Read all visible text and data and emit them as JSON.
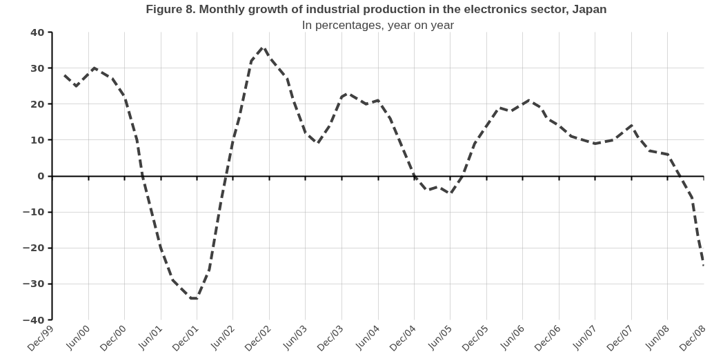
{
  "chart_data": {
    "type": "line",
    "title": "Figure 8.  Monthly growth of industrial production in the electronics sector, Japan",
    "subtitle": "In percentages, year on year",
    "x": [
      "2000-02",
      "2000-04",
      "2000-07",
      "2000-10",
      "2000-12",
      "2001-02",
      "2001-03",
      "2001-06",
      "2001-08",
      "2001-11",
      "2001-12",
      "2002-02",
      "2002-04",
      "2002-06",
      "2002-07",
      "2002-09",
      "2002-11",
      "2002-12",
      "2003-03",
      "2003-04",
      "2003-06",
      "2003-08",
      "2003-10",
      "2003-12",
      "2004-01",
      "2004-04",
      "2004-06",
      "2004-08",
      "2004-10",
      "2004-12",
      "2005-02",
      "2005-04",
      "2005-06",
      "2005-08",
      "2005-10",
      "2005-12",
      "2006-02",
      "2006-04",
      "2006-06",
      "2006-07",
      "2006-09",
      "2006-10",
      "2006-12",
      "2007-02",
      "2007-06",
      "2007-09",
      "2007-12",
      "2008-01",
      "2008-03",
      "2008-06",
      "2008-08",
      "2008-10",
      "2008-11",
      "2008-12"
    ],
    "series": [
      {
        "color": "#404040",
        "values": [
          28,
          25,
          30,
          27,
          22,
          10,
          0,
          -20,
          -29,
          -34,
          -34,
          -26,
          -7,
          10,
          16,
          32,
          36,
          33,
          27,
          21,
          12,
          9,
          14,
          22,
          23,
          20,
          21,
          16,
          8,
          0,
          -4,
          -3,
          -5,
          0,
          9,
          14,
          19,
          18,
          20,
          21,
          19,
          16,
          14,
          11,
          9,
          10,
          14,
          11,
          7,
          6,
          0,
          -6,
          -17,
          -25
        ]
      }
    ],
    "xlim": [
      "1999-12",
      "2008-12"
    ],
    "xticks": [
      {
        "value": "1999-12",
        "label": "Dec/99"
      },
      {
        "value": "2000-06",
        "label": "Jun/00"
      },
      {
        "value": "2000-12",
        "label": "Dec/00"
      },
      {
        "value": "2001-06",
        "label": "Jun/01"
      },
      {
        "value": "2001-12",
        "label": "Dec/01"
      },
      {
        "value": "2002-06",
        "label": "Jun/02"
      },
      {
        "value": "2002-12",
        "label": "Dec/02"
      },
      {
        "value": "2003-06",
        "label": "Jun/03"
      },
      {
        "value": "2003-12",
        "label": "Dec/03"
      },
      {
        "value": "2004-06",
        "label": "Jun/04"
      },
      {
        "value": "2004-12",
        "label": "Dec/04"
      },
      {
        "value": "2005-06",
        "label": "Jun/05"
      },
      {
        "value": "2005-12",
        "label": "Dec/05"
      },
      {
        "value": "2006-06",
        "label": "Jun/06"
      },
      {
        "value": "2006-12",
        "label": "Dec/06"
      },
      {
        "value": "2007-06",
        "label": "Jun/07"
      },
      {
        "value": "2007-12",
        "label": "Dec/07"
      },
      {
        "value": "2008-06",
        "label": "Jun/08"
      },
      {
        "value": "2008-12",
        "label": "Dec/08"
      }
    ],
    "ylim": [
      -40,
      40
    ],
    "yticks": [
      -40,
      -30,
      -20,
      -10,
      0,
      10,
      20,
      30,
      40
    ],
    "grid": true,
    "line_style": "dashed",
    "marker": "none"
  }
}
